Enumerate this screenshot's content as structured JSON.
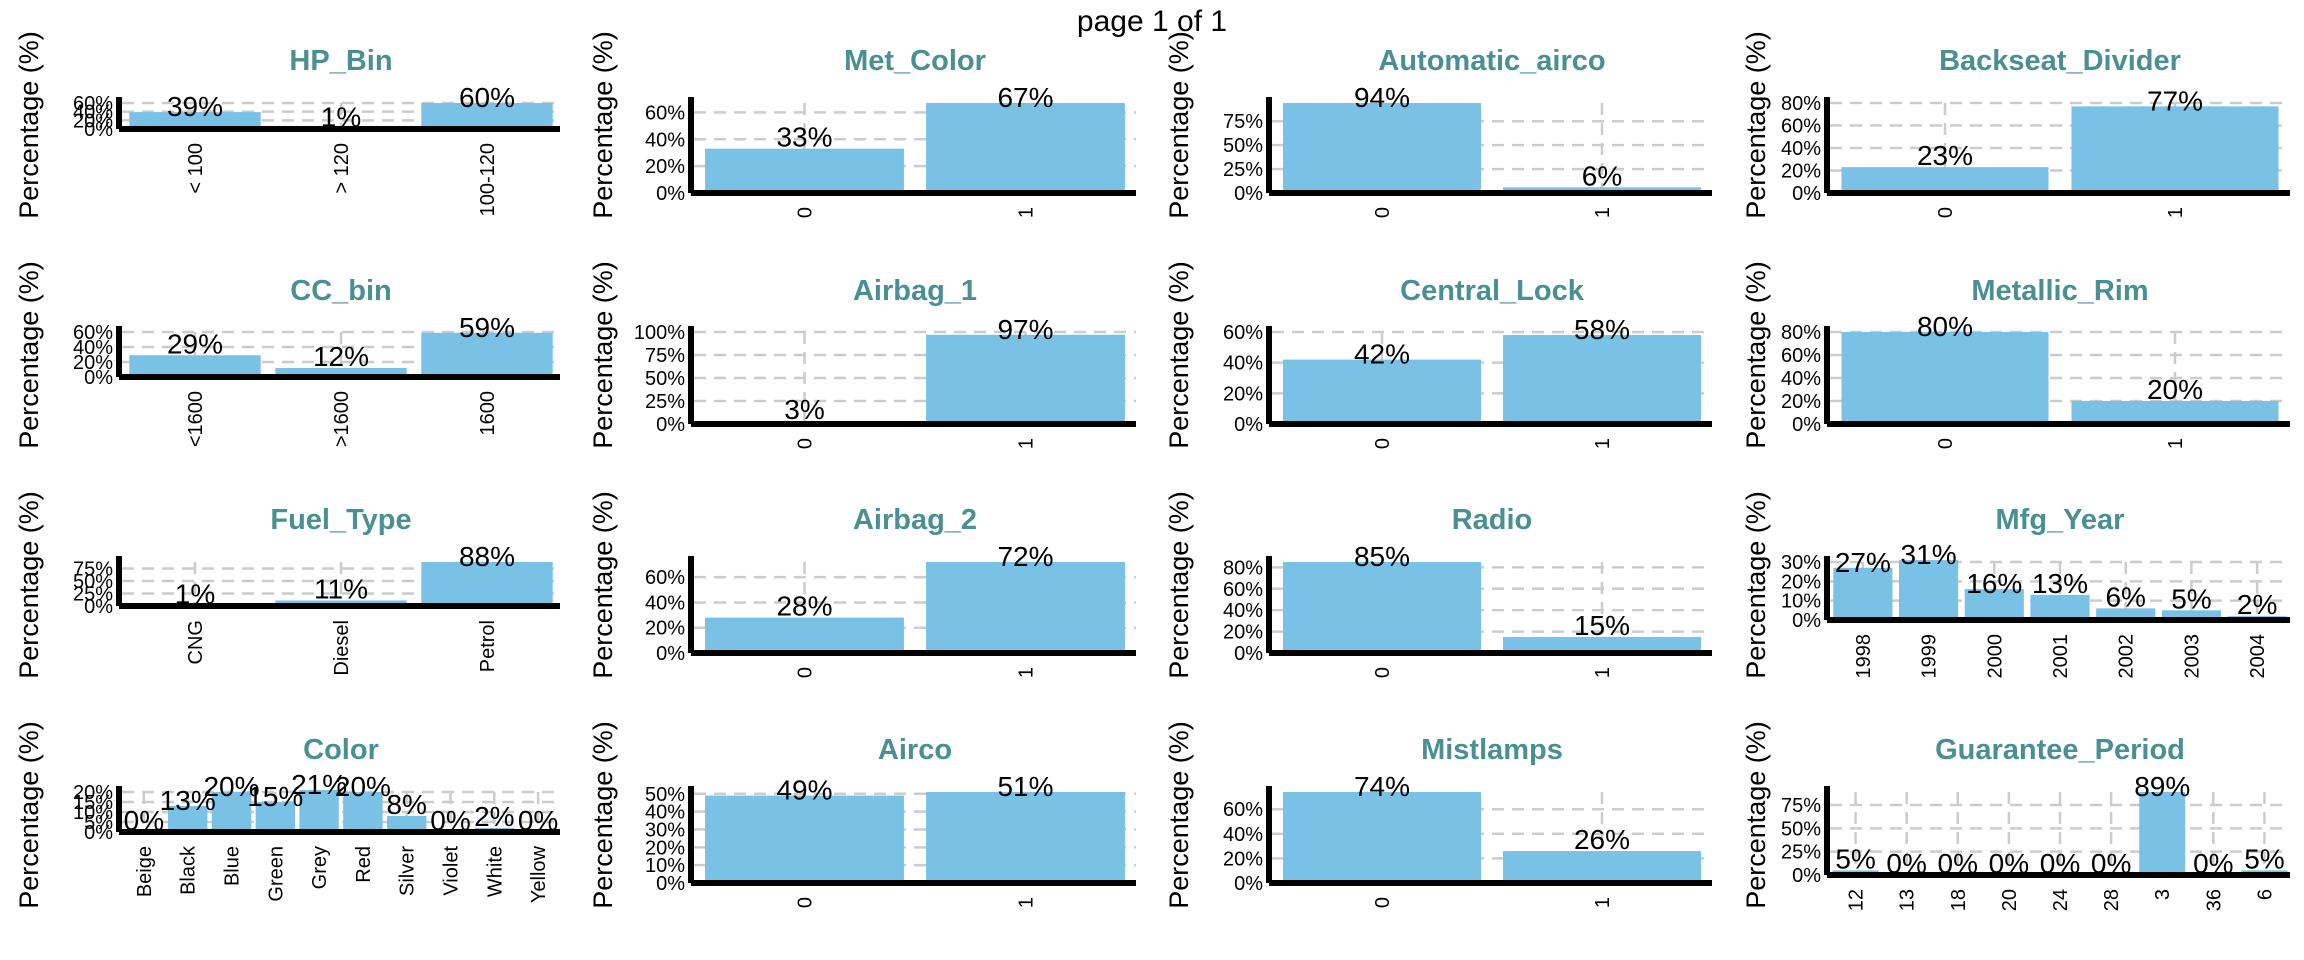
{
  "page": {
    "label": "page 1 of 1"
  },
  "colors": {
    "bar": "#7AC2E5",
    "title": "#4A8F91",
    "grid": "#CCCCCC",
    "axis": "#000000"
  },
  "chart_data": [
    {
      "type": "bar",
      "title": "HP_Bin",
      "ylabel": "Percentage (%)",
      "categories": [
        "< 100",
        "> 120",
        "100-120"
      ],
      "values": [
        39,
        1,
        60
      ],
      "labels": [
        "39%",
        "1%",
        "60%"
      ],
      "yticks": [
        0,
        20,
        40,
        60
      ],
      "ytick_labels": [
        "0%",
        "20%",
        "40%",
        "60%"
      ],
      "ylim": [
        0,
        60
      ],
      "xlabel_rotated": true
    },
    {
      "type": "bar",
      "title": "Met_Color",
      "ylabel": "Percentage (%)",
      "categories": [
        "0",
        "1"
      ],
      "values": [
        33,
        67
      ],
      "labels": [
        "33%",
        "67%"
      ],
      "yticks": [
        0,
        20,
        40,
        60
      ],
      "ytick_labels": [
        "0%",
        "20%",
        "40%",
        "60%"
      ],
      "ylim": [
        0,
        67
      ],
      "xlabel_rotated": true
    },
    {
      "type": "bar",
      "title": "Automatic_airco",
      "ylabel": "Percentage (%)",
      "categories": [
        "0",
        "1"
      ],
      "values": [
        94,
        6
      ],
      "labels": [
        "94%",
        "6%"
      ],
      "yticks": [
        0,
        25,
        50,
        75
      ],
      "ytick_labels": [
        "0%",
        "25%",
        "50%",
        "75%"
      ],
      "ylim": [
        0,
        94
      ],
      "xlabel_rotated": true
    },
    {
      "type": "bar",
      "title": "Backseat_Divider",
      "ylabel": "Percentage (%)",
      "categories": [
        "0",
        "1"
      ],
      "values": [
        23,
        77
      ],
      "labels": [
        "23%",
        "77%"
      ],
      "yticks": [
        0,
        20,
        40,
        60,
        80
      ],
      "ytick_labels": [
        "0%",
        "20%",
        "40%",
        "60%",
        "80%"
      ],
      "ylim": [
        0,
        80
      ],
      "xlabel_rotated": true
    },
    {
      "type": "bar",
      "title": "CC_bin",
      "ylabel": "Percentage (%)",
      "categories": [
        "<1600",
        ">1600",
        "1600"
      ],
      "values": [
        29,
        12,
        59
      ],
      "labels": [
        "29%",
        "12%",
        "59%"
      ],
      "yticks": [
        0,
        20,
        40,
        60
      ],
      "ytick_labels": [
        "0%",
        "20%",
        "40%",
        "60%"
      ],
      "ylim": [
        0,
        60
      ],
      "xlabel_rotated": true
    },
    {
      "type": "bar",
      "title": "Airbag_1",
      "ylabel": "Percentage (%)",
      "categories": [
        "0",
        "1"
      ],
      "values": [
        3,
        97
      ],
      "labels": [
        "3%",
        "97%"
      ],
      "yticks": [
        0,
        25,
        50,
        75,
        100
      ],
      "ytick_labels": [
        "0%",
        "25%",
        "50%",
        "75%",
        "100%"
      ],
      "ylim": [
        0,
        100
      ],
      "xlabel_rotated": true
    },
    {
      "type": "bar",
      "title": "Central_Lock",
      "ylabel": "Percentage (%)",
      "categories": [
        "0",
        "1"
      ],
      "values": [
        42,
        58
      ],
      "labels": [
        "42%",
        "58%"
      ],
      "yticks": [
        0,
        20,
        40,
        60
      ],
      "ytick_labels": [
        "0%",
        "20%",
        "40%",
        "60%"
      ],
      "ylim": [
        0,
        60
      ],
      "xlabel_rotated": true
    },
    {
      "type": "bar",
      "title": "Metallic_Rim",
      "ylabel": "Percentage (%)",
      "categories": [
        "0",
        "1"
      ],
      "values": [
        80,
        20
      ],
      "labels": [
        "80%",
        "20%"
      ],
      "yticks": [
        0,
        20,
        40,
        60,
        80
      ],
      "ytick_labels": [
        "0%",
        "20%",
        "40%",
        "60%",
        "80%"
      ],
      "ylim": [
        0,
        80
      ],
      "xlabel_rotated": true
    },
    {
      "type": "bar",
      "title": "Fuel_Type",
      "ylabel": "Percentage (%)",
      "categories": [
        "CNG",
        "Diesel",
        "Petrol"
      ],
      "values": [
        1,
        11,
        88
      ],
      "labels": [
        "1%",
        "11%",
        "88%"
      ],
      "yticks": [
        0,
        25,
        50,
        75
      ],
      "ytick_labels": [
        "0%",
        "25%",
        "50%",
        "75%"
      ],
      "ylim": [
        0,
        88
      ],
      "xlabel_rotated": true
    },
    {
      "type": "bar",
      "title": "Airbag_2",
      "ylabel": "Percentage (%)",
      "categories": [
        "0",
        "1"
      ],
      "values": [
        28,
        72
      ],
      "labels": [
        "28%",
        "72%"
      ],
      "yticks": [
        0,
        20,
        40,
        60
      ],
      "ytick_labels": [
        "0%",
        "20%",
        "40%",
        "60%"
      ],
      "ylim": [
        0,
        72
      ],
      "xlabel_rotated": true
    },
    {
      "type": "bar",
      "title": "Radio",
      "ylabel": "Percentage (%)",
      "categories": [
        "0",
        "1"
      ],
      "values": [
        85,
        15
      ],
      "labels": [
        "85%",
        "15%"
      ],
      "yticks": [
        0,
        20,
        40,
        60,
        80
      ],
      "ytick_labels": [
        "0%",
        "20%",
        "40%",
        "60%",
        "80%"
      ],
      "ylim": [
        0,
        85
      ],
      "xlabel_rotated": true
    },
    {
      "type": "bar",
      "title": "Mfg_Year",
      "ylabel": "Percentage (%)",
      "categories": [
        "1998",
        "1999",
        "2000",
        "2001",
        "2002",
        "2003",
        "2004"
      ],
      "values": [
        27,
        31,
        16,
        13,
        6,
        5,
        2
      ],
      "labels": [
        "27%",
        "31%",
        "16%",
        "13%",
        "6%",
        "5%",
        "2%"
      ],
      "yticks": [
        0,
        10,
        20,
        30
      ],
      "ytick_labels": [
        "0%",
        "10%",
        "20%",
        "30%"
      ],
      "ylim": [
        0,
        30
      ],
      "xlabel_rotated": true
    },
    {
      "type": "bar",
      "title": "Color",
      "ylabel": "Percentage (%)",
      "categories": [
        "Beige",
        "Black",
        "Blue",
        "Green",
        "Grey",
        "Red",
        "Silver",
        "Violet",
        "White",
        "Yellow"
      ],
      "values": [
        0,
        13,
        20,
        15,
        21,
        20,
        8,
        0,
        2,
        0
      ],
      "labels": [
        "0%",
        "13%",
        "20%",
        "15%",
        "21%",
        "20%",
        "8%",
        "0%",
        "2%",
        "0%"
      ],
      "yticks": [
        0,
        5,
        10,
        15,
        20
      ],
      "ytick_labels": [
        "0%",
        "5%",
        "10%",
        "15%",
        "20%"
      ],
      "ylim": [
        0,
        20
      ],
      "xlabel_rotated": true
    },
    {
      "type": "bar",
      "title": "Airco",
      "ylabel": "Percentage (%)",
      "categories": [
        "0",
        "1"
      ],
      "values": [
        49,
        51
      ],
      "labels": [
        "49%",
        "51%"
      ],
      "yticks": [
        0,
        10,
        20,
        30,
        40,
        50
      ],
      "ytick_labels": [
        "0%",
        "10%",
        "20%",
        "30%",
        "40%",
        "50%"
      ],
      "ylim": [
        0,
        51
      ],
      "xlabel_rotated": true
    },
    {
      "type": "bar",
      "title": "Mistlamps",
      "ylabel": "Percentage (%)",
      "categories": [
        "0",
        "1"
      ],
      "values": [
        74,
        26
      ],
      "labels": [
        "74%",
        "26%"
      ],
      "yticks": [
        0,
        20,
        40,
        60
      ],
      "ytick_labels": [
        "0%",
        "20%",
        "40%",
        "60%"
      ],
      "ylim": [
        0,
        74
      ],
      "xlabel_rotated": true
    },
    {
      "type": "bar",
      "title": "Guarantee_Period",
      "ylabel": "Percentage (%)",
      "categories": [
        "12",
        "13",
        "18",
        "20",
        "24",
        "28",
        "3",
        "36",
        "6"
      ],
      "values": [
        5,
        0,
        0,
        0,
        0,
        0,
        89,
        0,
        5
      ],
      "labels": [
        "5%",
        "0%",
        "0%",
        "0%",
        "0%",
        "0%",
        "89%",
        "0%",
        "5%"
      ],
      "yticks": [
        0,
        25,
        50,
        75
      ],
      "ytick_labels": [
        "0%",
        "25%",
        "50%",
        "75%"
      ],
      "ylim": [
        0,
        89
      ],
      "xlabel_rotated": true
    }
  ]
}
